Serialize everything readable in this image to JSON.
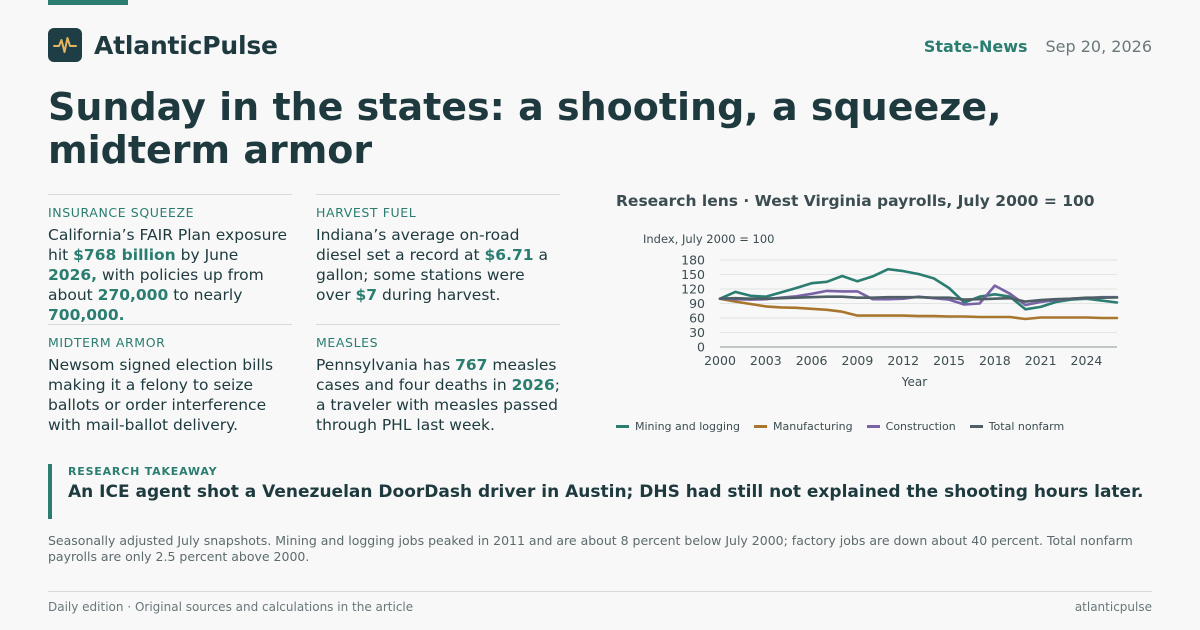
{
  "brand": {
    "name": "AtlanticPulse",
    "logo_icon": "pulse-waveform-icon"
  },
  "header": {
    "section": "State-News",
    "date": "Sep 20, 2026"
  },
  "headline": "Sunday in the states: a shooting, a squeeze, midterm armor",
  "items": [
    {
      "kicker": "INSURANCE SQUEEZE",
      "parts": [
        {
          "t": "California’s FAIR Plan exposure hit "
        },
        {
          "t": "$768 billion",
          "hl": true
        },
        {
          "t": " by June "
        },
        {
          "t": "2026,",
          "hl": true
        },
        {
          "t": " with policies up from about "
        },
        {
          "t": "270,000",
          "hl": true
        },
        {
          "t": " to nearly "
        },
        {
          "t": "700,000.",
          "hl": true
        }
      ]
    },
    {
      "kicker": "HARVEST FUEL",
      "parts": [
        {
          "t": "Indiana’s average on-road diesel set a record at "
        },
        {
          "t": "$6.71",
          "hl": true
        },
        {
          "t": " a gallon; some stations were over "
        },
        {
          "t": "$7",
          "hl": true
        },
        {
          "t": " during harvest."
        }
      ]
    },
    {
      "kicker": "MIDTERM ARMOR",
      "parts": [
        {
          "t": "Newsom signed election bills making it a felony to seize ballots or order interference with mail-ballot delivery."
        }
      ]
    },
    {
      "kicker": "MEASLES",
      "parts": [
        {
          "t": "Pennsylvania has "
        },
        {
          "t": "767",
          "hl": true
        },
        {
          "t": " measles cases and four deaths in "
        },
        {
          "t": "2026",
          "hl": true
        },
        {
          "t": "; a traveler with measles passed through PHL last week."
        }
      ]
    }
  ],
  "chart_title": "Research lens · West Virginia payrolls, July 2000 = 100",
  "chart_data": {
    "type": "line",
    "ylabel": "Index, July 2000 = 100",
    "xlabel": "Year",
    "ylim": [
      0,
      180
    ],
    "yticks": [
      0,
      30,
      60,
      90,
      120,
      150,
      180
    ],
    "xticks": [
      2000,
      2003,
      2006,
      2009,
      2012,
      2015,
      2018,
      2021,
      2024
    ],
    "xlim": [
      2000,
      2026
    ],
    "grid": true,
    "legend_position": "bottom",
    "x": [
      2000,
      2001,
      2002,
      2003,
      2004,
      2005,
      2006,
      2007,
      2008,
      2009,
      2010,
      2011,
      2012,
      2013,
      2014,
      2015,
      2016,
      2017,
      2018,
      2019,
      2020,
      2021,
      2022,
      2023,
      2024,
      2025,
      2026
    ],
    "series": [
      {
        "name": "Mining and logging",
        "color": "#2a7d70",
        "values": [
          100,
          114,
          106,
          104,
          113,
          122,
          132,
          135,
          147,
          136,
          146,
          161,
          157,
          151,
          142,
          122,
          92,
          104,
          109,
          104,
          78,
          83,
          93,
          98,
          100,
          96,
          92
        ]
      },
      {
        "name": "Manufacturing",
        "color": "#a8762e",
        "values": [
          100,
          94,
          89,
          84,
          82,
          81,
          79,
          77,
          73,
          65,
          65,
          65,
          65,
          64,
          64,
          63,
          63,
          62,
          62,
          62,
          58,
          61,
          61,
          61,
          61,
          60,
          60
        ]
      },
      {
        "name": "Construction",
        "color": "#7a62a6",
        "values": [
          100,
          99,
          98,
          99,
          102,
          105,
          110,
          116,
          115,
          115,
          99,
          99,
          100,
          104,
          101,
          98,
          88,
          90,
          127,
          110,
          87,
          93,
          97,
          100,
          101,
          103,
          103
        ]
      },
      {
        "name": "Total nonfarm",
        "color": "#4f5f66",
        "values": [
          100,
          101,
          100,
          100,
          101,
          102,
          103,
          104,
          104,
          102,
          102,
          103,
          103,
          103,
          102,
          102,
          98,
          99,
          100,
          101,
          94,
          97,
          99,
          100,
          102,
          102,
          102.5
        ]
      }
    ]
  },
  "takeaway": {
    "kicker": "RESEARCH TAKEAWAY",
    "text": "An ICE agent shot a Venezuelan DoorDash driver in Austin; DHS had still not explained the shooting hours later."
  },
  "note": "Seasonally adjusted July snapshots. Mining and logging jobs peaked in 2011 and are about 8 percent below July 2000; factory jobs are down about 40 percent. Total nonfarm payrolls are only 2.5 percent above 2000.",
  "footer": {
    "left": "Daily edition · Original sources and calculations in the article",
    "right": "atlanticpulse"
  }
}
